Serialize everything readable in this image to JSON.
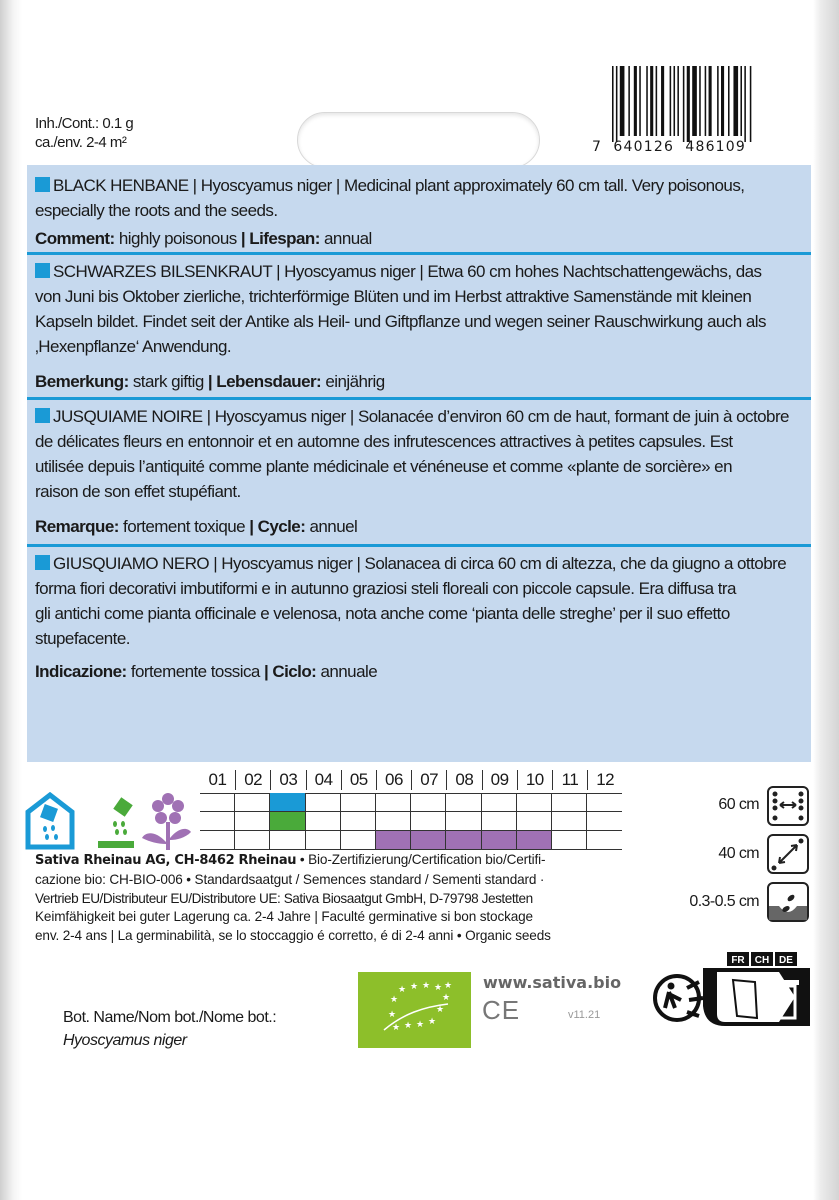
{
  "contents": {
    "line1": "Inh./Cont.:  0.1 g",
    "line2": "ca./env. 2-4 m²"
  },
  "barcode": {
    "digits": "7  640126  486109"
  },
  "sections": [
    {
      "lines": [
        "BLACK HENBANE | Hyoscyamus niger | Medicinal plant approximately 60 cm tall. Very poisonous,",
        "especially the roots and the seeds."
      ],
      "comment": [
        {
          "label": "Comment:",
          "value": " highly poisonous "
        },
        {
          "label": "| Lifespan:",
          "value": " annual"
        }
      ]
    },
    {
      "lines": [
        "SCHWARZES BILSENKRAUT | Hyoscyamus niger | Etwa 60 cm hohes Nachtschattengewächs, das",
        "von Juni bis Oktober zierliche, trichterförmige Blüten und im Herbst attraktive Samenstände mit kleinen",
        "Kapseln bildet. Findet seit der Antike als Heil- und Giftpflanze und wegen seiner Rauschwirkung auch als",
        "‚Hexenpflanze‘ Anwendung."
      ],
      "comment": [
        {
          "label": "Bemerkung:",
          "value": " stark giftig "
        },
        {
          "label": "| Lebensdauer:",
          "value": " einjährig"
        }
      ]
    },
    {
      "lines": [
        "JUSQUIAME NOIRE | Hyoscyamus niger | Solanacée d’environ 60 cm de haut, formant de juin à octobre",
        "de délicates fleurs en entonnoir et en automne des infrutescences attractives à petites capsules. Est",
        "utilisée depuis l’antiquité comme plante médicinale et vénéneuse et comme «plante de sorcière» en",
        "raison de son effet stupéfiant."
      ],
      "comment": [
        {
          "label": "Remarque:",
          "value": " fortement toxique "
        },
        {
          "label": "| Cycle:",
          "value": " annuel"
        }
      ]
    },
    {
      "lines": [
        "GIUSQUIAMO NERO | Hyoscyamus niger | Solanacea di circa 60 cm di altezza, che da giugno a ottobre",
        "forma fiori decorativi imbutiformi e in autunno graziosi steli floreali con piccole capsule. Era diffusa tra",
        "gli antichi come pianta officinale e velenosa, nota anche come ‘pianta delle streghe’ per il suo effetto",
        "stupefacente."
      ],
      "comment": [
        {
          "label": "Indicazione:",
          "value": " fortemente tossica "
        },
        {
          "label": "| Ciclo:",
          "value": " annuale"
        }
      ]
    }
  ],
  "calendar": {
    "months": [
      "01",
      "02",
      "03",
      "04",
      "05",
      "06",
      "07",
      "08",
      "09",
      "10",
      "11",
      "12"
    ],
    "rows": [
      {
        "icon": "greenhouse-sowing-icon",
        "color": "#1a9ad6",
        "months": [
          "03"
        ]
      },
      {
        "icon": "outdoor-sowing-icon",
        "color": "#4aaa3a",
        "months": [
          "03"
        ]
      },
      {
        "icon": "flowering-icon",
        "color": "#a071b4",
        "months": [
          "06",
          "07",
          "08",
          "09",
          "10"
        ]
      }
    ]
  },
  "measurements": [
    {
      "value": "60 cm",
      "icon": "row-spacing-icon"
    },
    {
      "value": "40 cm",
      "icon": "plant-spacing-icon"
    },
    {
      "value": "0.3-0.5 cm",
      "icon": "sowing-depth-icon"
    }
  ],
  "footer": {
    "company": "Sativa Rheinau AG, CH-8462 Rheinau",
    "line1_rest": " • Bio-Zertifizierung/Certification bio/Certifi-",
    "line2": "cazione bio: CH-BIO-006 • Standardsaatgut / Semences standard / Sementi standard ·",
    "line3": "Vertrieb EU/Distributeur EU/Distributore UE: Sativa Biosaatgut GmbH, D-79798 Jestetten",
    "line4": "Keimfähigkeit bei guter Lagerung ca. 2-4 Jahre | Faculté germinative si bon stockage",
    "line5": "env. 2-4 ans | La germinabilità, se lo stoccaggio é corretto, é di 2-4 anni • Organic seeds"
  },
  "botanical": {
    "label": "Bot. Name/Nom bot./Nome bot.:",
    "name": "Hyoscyamus niger"
  },
  "website": "www.sativa.bio",
  "ce_mark": "CE",
  "version": "v11.21",
  "recycling": {
    "countries": [
      "FR",
      "CH",
      "DE"
    ]
  },
  "colors": {
    "panel": "#c6d9ee",
    "accent": "#1a9ad6",
    "eu_green": "#8dbf2a"
  }
}
